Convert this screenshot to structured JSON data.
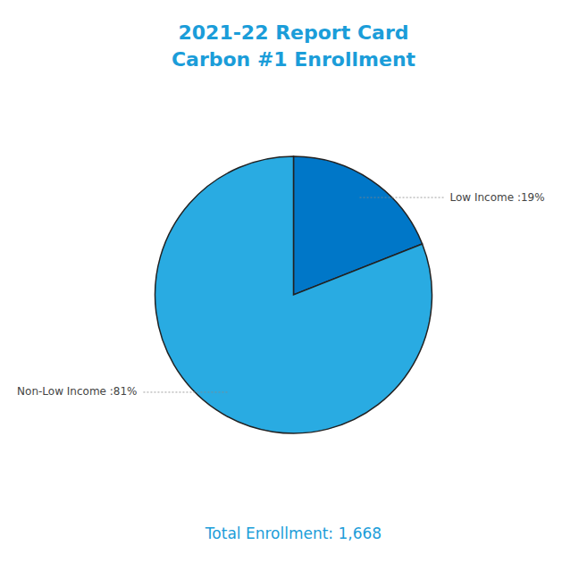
{
  "chart_data": {
    "type": "pie",
    "title": "2021-22 Report Card",
    "subtitle": "Carbon #1 Enrollment",
    "annotations": [
      "Total Enrollment: 1,668"
    ],
    "values": [
      19,
      81
    ],
    "value_labels": [
      "Low Income :19%",
      "Non-Low Income :81%"
    ],
    "colors": [
      "#0077C8",
      "#29ABE2"
    ],
    "data_labels": true
  }
}
